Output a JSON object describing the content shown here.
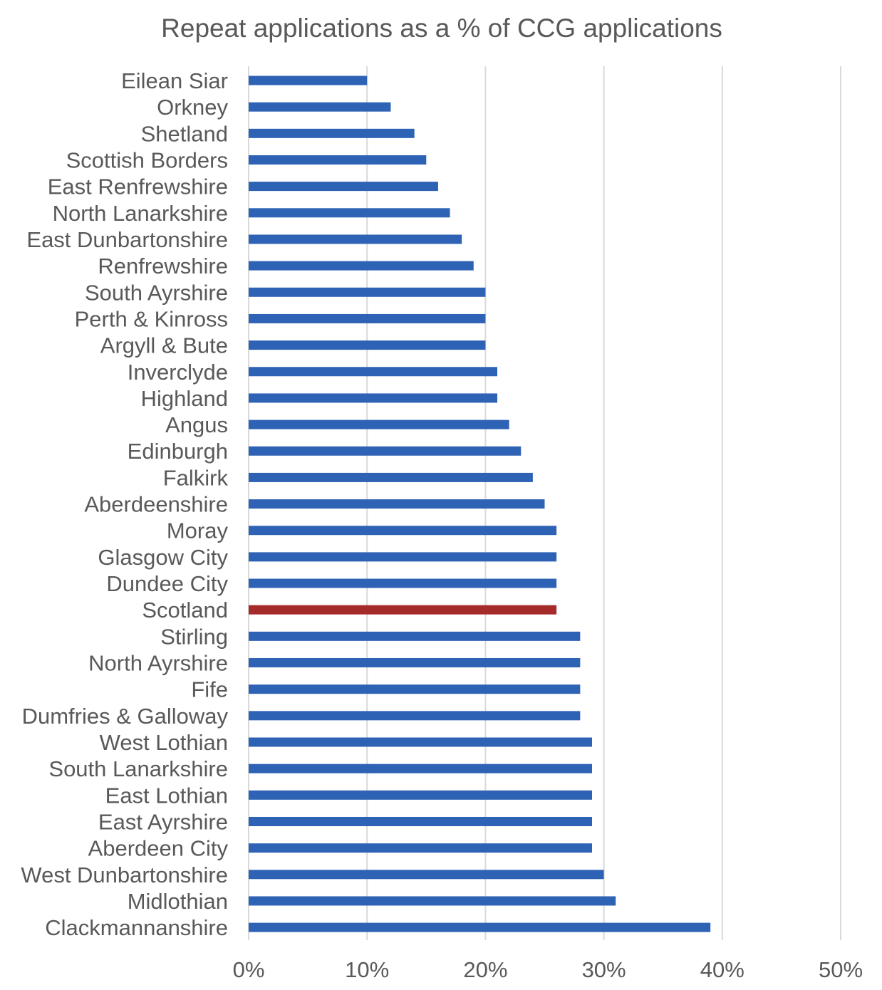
{
  "chart_data": {
    "type": "bar",
    "orientation": "horizontal",
    "title": "Repeat applications as a % of CCG applications",
    "xlabel": "",
    "ylabel": "",
    "xlim": [
      0,
      50
    ],
    "x_ticks": [
      "0%",
      "10%",
      "20%",
      "30%",
      "40%",
      "50%"
    ],
    "grid": true,
    "legend": "none",
    "categories": [
      "Eilean Siar",
      "Orkney",
      "Shetland",
      "Scottish Borders",
      "East Renfrewshire",
      "North Lanarkshire",
      "East Dunbartonshire",
      "Renfrewshire",
      "South Ayrshire",
      "Perth & Kinross",
      "Argyll & Bute",
      "Inverclyde",
      "Highland",
      "Angus",
      "Edinburgh",
      "Falkirk",
      "Aberdeenshire",
      "Moray",
      "Glasgow City",
      "Dundee City",
      "Scotland",
      "Stirling",
      "North Ayrshire",
      "Fife",
      "Dumfries & Galloway",
      "West Lothian",
      "South Lanarkshire",
      "East Lothian",
      "East Ayrshire",
      "Aberdeen City",
      "West Dunbartonshire",
      "Midlothian",
      "Clackmannanshire"
    ],
    "values": [
      10,
      12,
      14,
      15,
      16,
      17,
      18,
      19,
      20,
      20,
      20,
      21,
      21,
      22,
      23,
      24,
      25,
      26,
      26,
      26,
      26,
      28,
      28,
      28,
      28,
      29,
      29,
      29,
      29,
      29,
      30,
      31,
      39
    ],
    "colors": {
      "bar": "#2e62b5",
      "highlight": "#a52a2a",
      "grid": "#d9d9d9",
      "text": "#595959"
    },
    "highlight_category": "Scotland"
  }
}
